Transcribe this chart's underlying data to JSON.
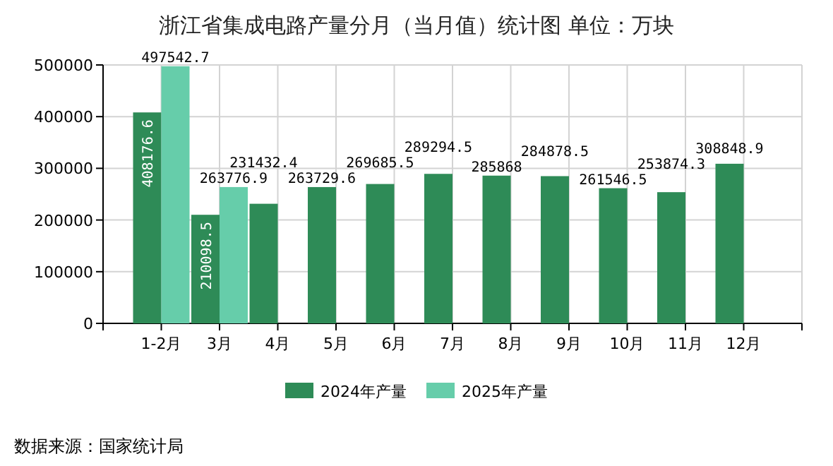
{
  "chart_data": {
    "type": "bar",
    "title": "浙江省集成电路产量分月（当月值）统计图 单位：万块",
    "categories": [
      "1-2月",
      "3月",
      "4月",
      "5月",
      "6月",
      "7月",
      "8月",
      "9月",
      "10月",
      "11月",
      "12月"
    ],
    "series": [
      {
        "name": "2024年产量",
        "color": "#2e8b57",
        "values": [
          408176.6,
          210098.5,
          231432.4,
          263729.6,
          269685.5,
          289294.5,
          285868,
          284878.5,
          261546.5,
          253874.3,
          308848.9
        ]
      },
      {
        "name": "2025年产量",
        "color": "#66cdaa",
        "values": [
          497542.7,
          263776.9,
          null,
          null,
          null,
          null,
          null,
          null,
          null,
          null,
          null
        ]
      }
    ],
    "ylim": [
      0,
      500000
    ],
    "yticks": [
      0,
      100000,
      200000,
      300000,
      400000,
      500000
    ],
    "grid": true,
    "legend": "bottom",
    "data_labels": true,
    "annotations": [
      "数据来源：国家统计局"
    ]
  }
}
